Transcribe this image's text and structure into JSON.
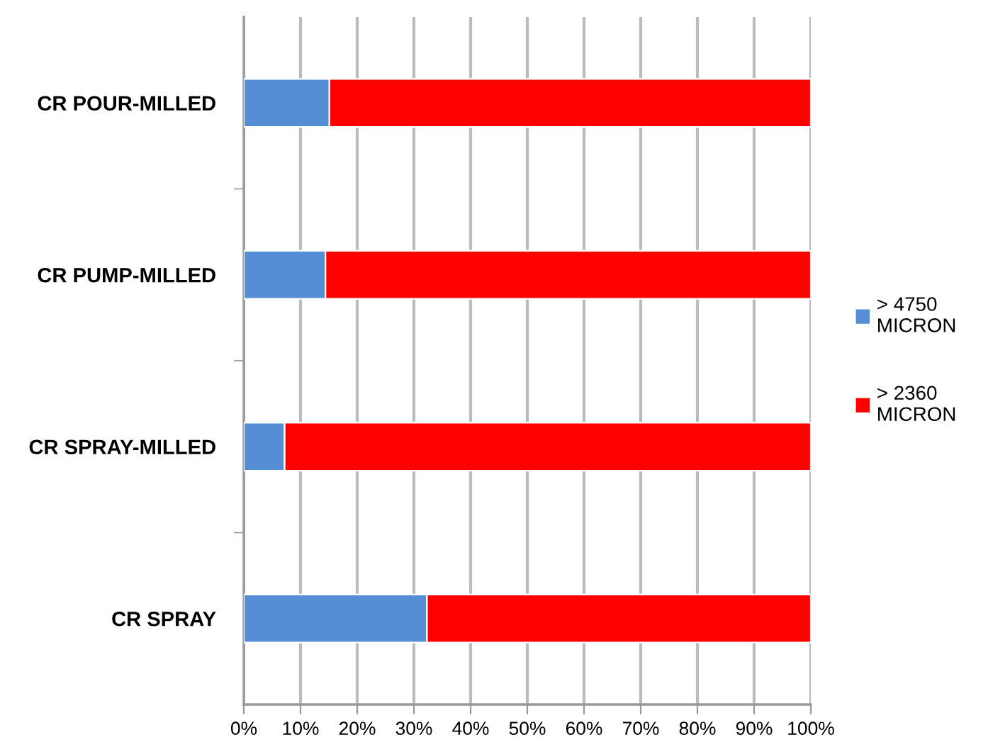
{
  "chart_data": {
    "type": "bar",
    "orientation": "horizontal",
    "stacked": true,
    "categories": [
      "CR POUR-MILLED",
      "CR PUMP-MILLED",
      "CR SPRAY-MILLED",
      "CR SPRAY"
    ],
    "series": [
      {
        "name": "> 4750\nMICRON",
        "color": "#558ed5",
        "values": [
          15.1,
          14.4,
          7.2,
          32.3
        ]
      },
      {
        "name": "> 2360\nMICRON",
        "color": "#ff0000",
        "values": [
          84.9,
          85.6,
          92.8,
          67.7
        ]
      }
    ],
    "xlim": [
      0,
      100
    ],
    "xticks": [
      {
        "value": 0,
        "label": "0%"
      },
      {
        "value": 10,
        "label": "10%"
      },
      {
        "value": 20,
        "label": "20%"
      },
      {
        "value": 30,
        "label": "30%"
      },
      {
        "value": 40,
        "label": "40%"
      },
      {
        "value": 50,
        "label": "50%"
      },
      {
        "value": 60,
        "label": "60%"
      },
      {
        "value": 70,
        "label": "70%"
      },
      {
        "value": 80,
        "label": "80%"
      },
      {
        "value": 90,
        "label": "90%"
      },
      {
        "value": 100,
        "label": "100%"
      }
    ],
    "grid": "x",
    "legend": "right"
  }
}
